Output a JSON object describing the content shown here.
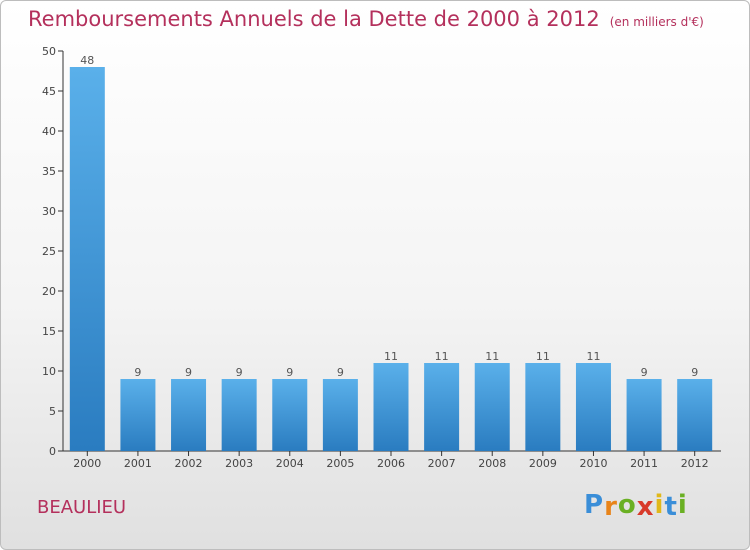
{
  "chart_data": {
    "type": "bar",
    "title": "Remboursements Annuels de la Dette de 2000 à 2012",
    "unit": "(en milliers d'€)",
    "categories": [
      "2000",
      "2001",
      "2002",
      "2003",
      "2004",
      "2005",
      "2006",
      "2007",
      "2008",
      "2009",
      "2010",
      "2011",
      "2012"
    ],
    "values": [
      48,
      9,
      9,
      9,
      9,
      9,
      11,
      11,
      11,
      11,
      11,
      9,
      9
    ],
    "ylim": [
      0,
      50
    ],
    "yticks": [
      0,
      5,
      10,
      15,
      20,
      25,
      30,
      35,
      40,
      45,
      50
    ],
    "bar_color_top": "#5ab0ea",
    "bar_color_bottom": "#2a7cc0"
  },
  "footer": {
    "city": "BEAULIEU",
    "logo": [
      "P",
      "r",
      "o",
      "x",
      "i",
      "t",
      "i"
    ],
    "logo_colors": [
      "#3a8ed8",
      "#e8841a",
      "#6ab023",
      "#d83a2a",
      "#e0b81a",
      "#3a8ed8",
      "#6ab023"
    ]
  }
}
